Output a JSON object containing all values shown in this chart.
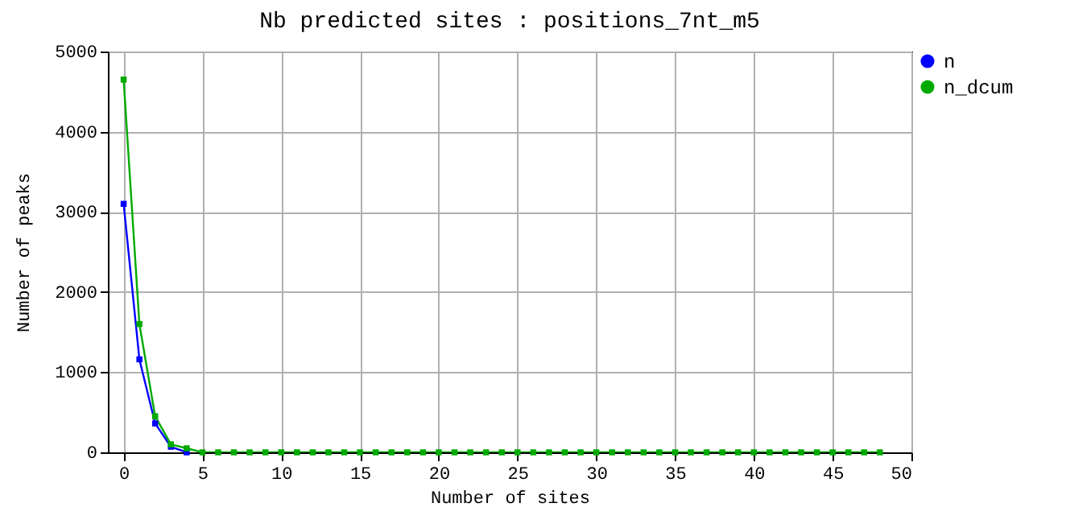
{
  "chart_data": {
    "type": "line",
    "title": "Nb predicted sites : positions_7nt_m5",
    "xlabel": "Number of sites",
    "ylabel": "Number of peaks",
    "x": [
      0,
      1,
      2,
      3,
      4,
      5,
      6,
      7,
      8,
      9,
      10,
      11,
      12,
      13,
      14,
      15,
      16,
      17,
      18,
      19,
      20,
      21,
      22,
      23,
      24,
      25,
      26,
      27,
      28,
      29,
      30,
      31,
      32,
      33,
      34,
      35,
      36,
      37,
      38,
      39,
      40,
      41,
      42,
      43,
      44,
      45,
      46,
      47,
      48
    ],
    "series": [
      {
        "name": "n",
        "color": "#0000ff",
        "values": [
          3100,
          1160,
          360,
          70,
          0,
          null,
          null,
          null,
          null,
          null,
          null,
          null,
          null,
          null,
          null,
          null,
          null,
          null,
          null,
          null,
          null,
          null,
          null,
          null,
          null,
          null,
          null,
          null,
          null,
          null,
          null,
          null,
          null,
          null,
          null,
          null,
          null,
          null,
          null,
          null,
          null,
          null,
          null,
          null,
          null,
          null,
          null,
          null,
          null
        ]
      },
      {
        "name": "n_dcum",
        "color": "#00aa00",
        "values": [
          4650,
          1600,
          450,
          100,
          50,
          0,
          0,
          0,
          0,
          0,
          0,
          0,
          0,
          0,
          0,
          0,
          0,
          0,
          0,
          0,
          0,
          0,
          0,
          0,
          0,
          0,
          0,
          0,
          0,
          0,
          0,
          0,
          0,
          0,
          0,
          0,
          0,
          0,
          0,
          0,
          0,
          0,
          0,
          0,
          0,
          0,
          0,
          0,
          0
        ]
      }
    ],
    "xlim": [
      -1,
      50
    ],
    "xticks": [
      0,
      5,
      10,
      15,
      20,
      25,
      30,
      35,
      40,
      45,
      50
    ],
    "ylim": [
      0,
      5000
    ],
    "yticks": [
      0,
      1000,
      2000,
      3000,
      4000,
      5000
    ],
    "grid": true,
    "legend": "top right",
    "marker": "square",
    "line_style": "solid"
  }
}
